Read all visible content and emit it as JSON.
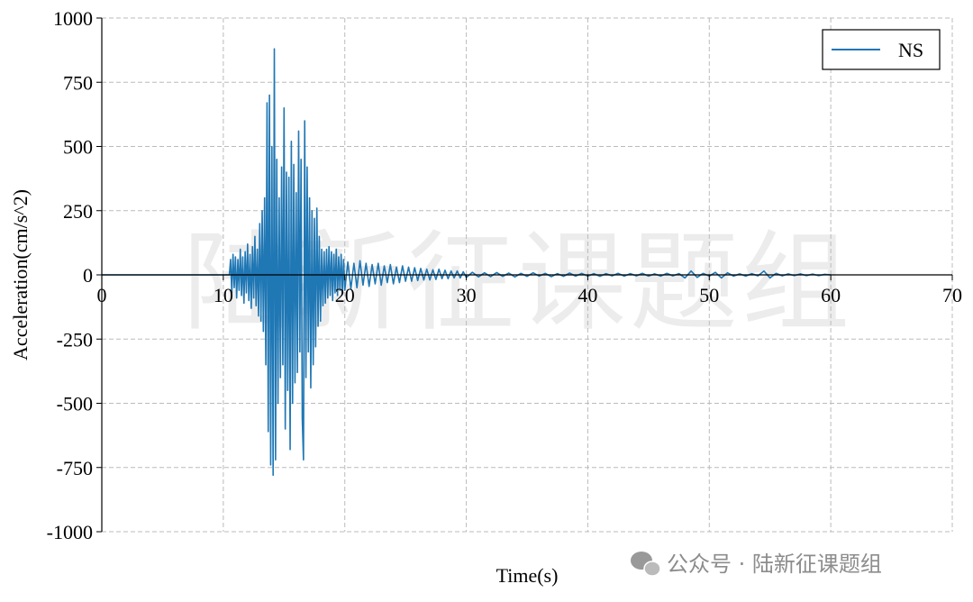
{
  "chart_data": {
    "type": "line",
    "x_label": "Time(s)",
    "y_label": "Acceleration(cm/s^2)",
    "watermark": "陆新征课题组",
    "credit": "公众号 · 陆新征课题组",
    "xlim": [
      0,
      70
    ],
    "xticks": [
      0,
      10,
      20,
      30,
      40,
      50,
      60,
      70
    ],
    "ylim": [
      -1000,
      1000
    ],
    "yticks": [
      -1000,
      -750,
      -500,
      -250,
      0,
      250,
      500,
      750,
      1000
    ],
    "grid": true,
    "legend": "upper right",
    "x": [
      0,
      10.5,
      10.6,
      10.7,
      10.8,
      10.9,
      11.0,
      11.1,
      11.2,
      11.3,
      11.4,
      11.5,
      11.6,
      11.7,
      11.8,
      11.9,
      12.0,
      12.1,
      12.2,
      12.3,
      12.4,
      12.5,
      12.6,
      12.7,
      12.8,
      12.9,
      13.0,
      13.1,
      13.2,
      13.3,
      13.4,
      13.5,
      13.6,
      13.7,
      13.8,
      13.9,
      14.0,
      14.1,
      14.2,
      14.3,
      14.4,
      14.5,
      14.6,
      14.7,
      14.8,
      14.9,
      15.0,
      15.1,
      15.2,
      15.3,
      15.4,
      15.5,
      15.6,
      15.7,
      15.8,
      15.9,
      16.0,
      16.1,
      16.2,
      16.3,
      16.4,
      16.5,
      16.6,
      16.7,
      16.8,
      16.9,
      17.0,
      17.1,
      17.2,
      17.3,
      17.4,
      17.5,
      17.6,
      17.7,
      17.8,
      17.9,
      18.0,
      18.1,
      18.2,
      18.3,
      18.4,
      18.5,
      18.6,
      18.7,
      18.8,
      18.9,
      19.0,
      19.1,
      19.2,
      19.3,
      19.4,
      19.5,
      19.6,
      19.7,
      19.8,
      19.9,
      20.0,
      20.25,
      20.5,
      20.75,
      21,
      21.25,
      21.5,
      21.75,
      22,
      22.25,
      22.5,
      22.75,
      23,
      23.25,
      23.5,
      23.75,
      24,
      24.25,
      24.5,
      24.75,
      25,
      25.25,
      25.5,
      25.75,
      26,
      26.25,
      26.5,
      26.75,
      27,
      27.25,
      27.5,
      27.75,
      28,
      28.25,
      28.5,
      28.75,
      29,
      29.25,
      29.5,
      29.75,
      30,
      30.5,
      31,
      31.5,
      32,
      32.5,
      33,
      33.5,
      34,
      34.5,
      35,
      35.5,
      36,
      36.5,
      37,
      37.5,
      38,
      38.5,
      39,
      39.5,
      40,
      40.5,
      41,
      41.5,
      42,
      42.5,
      43,
      43.5,
      44,
      44.5,
      45,
      45.5,
      46,
      46.5,
      47,
      47.5,
      48,
      48.5,
      49,
      49.5,
      50,
      50.5,
      51,
      51.5,
      52,
      52.5,
      53,
      53.5,
      54,
      54.5,
      55,
      55.5,
      56,
      56.5,
      57,
      57.5,
      58,
      58.5,
      59,
      59.5,
      60
    ],
    "series": [
      {
        "name": "NS",
        "color": "#1f77b4",
        "values": [
          0,
          0,
          60,
          -70,
          80,
          -50,
          70,
          -90,
          60,
          -60,
          100,
          -80,
          70,
          -110,
          90,
          -70,
          120,
          -100,
          80,
          -130,
          110,
          -90,
          150,
          -120,
          100,
          -160,
          200,
          -180,
          250,
          -220,
          300,
          -350,
          670,
          -610,
          700,
          -740,
          500,
          -780,
          880,
          -720,
          450,
          -500,
          300,
          -400,
          420,
          -350,
          650,
          -600,
          400,
          -450,
          380,
          -680,
          520,
          -500,
          430,
          -420,
          320,
          -380,
          560,
          -300,
          450,
          -560,
          -720,
          600,
          -400,
          420,
          -300,
          300,
          -440,
          250,
          -350,
          220,
          -280,
          260,
          -200,
          150,
          -180,
          100,
          -120,
          90,
          -110,
          100,
          -90,
          110,
          -80,
          90,
          -100,
          80,
          -70,
          100,
          -80,
          70,
          -60,
          80,
          -70,
          60,
          -60,
          50,
          -55,
          45,
          -50,
          55,
          -40,
          45,
          -45,
          40,
          -35,
          45,
          -40,
          35,
          -30,
          40,
          -35,
          30,
          -30,
          35,
          -25,
          30,
          -25,
          28,
          -22,
          25,
          -20,
          22,
          -20,
          20,
          -18,
          22,
          -15,
          18,
          -15,
          15,
          -12,
          15,
          -12,
          12,
          -10,
          10,
          -8,
          8,
          -7,
          9,
          -6,
          7,
          -8,
          6,
          -6,
          8,
          -5,
          6,
          -7,
          5,
          -6,
          7,
          -5,
          6,
          -5,
          5,
          -6,
          5,
          -4,
          6,
          -5,
          5,
          -4,
          6,
          -5,
          4,
          -5,
          6,
          -4,
          5,
          -12,
          15,
          -10,
          6,
          -5,
          10,
          -12,
          8,
          -5,
          4,
          -5,
          5,
          -4,
          15,
          -12,
          6,
          -4,
          4,
          -3,
          4,
          -3,
          3,
          -3,
          2,
          0
        ]
      }
    ]
  }
}
